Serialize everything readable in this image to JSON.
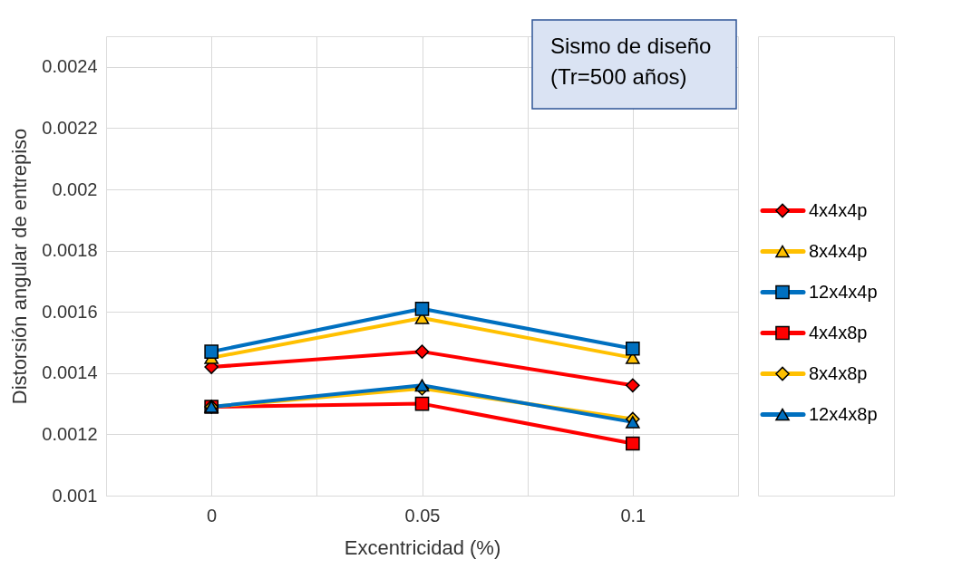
{
  "chart_data": {
    "type": "line",
    "xlabel": "Excentricidad (%)",
    "ylabel": "Distorsión angular de entrepiso",
    "x": [
      0,
      0.05,
      0.1
    ],
    "series": [
      {
        "name": "4x4x4p",
        "color": "#ff0000",
        "marker": "diamond",
        "values": [
          0.00142,
          0.00147,
          0.00136
        ]
      },
      {
        "name": "8x4x4p",
        "color": "#ffc000",
        "marker": "triangle",
        "values": [
          0.00145,
          0.00158,
          0.00145
        ]
      },
      {
        "name": "12x4x4p",
        "color": "#0070c0",
        "marker": "square",
        "values": [
          0.00147,
          0.00161,
          0.00148
        ]
      },
      {
        "name": "4x4x8p",
        "color": "#ff0000",
        "marker": "square",
        "values": [
          0.00129,
          0.0013,
          0.00117
        ]
      },
      {
        "name": "8x4x8p",
        "color": "#ffc000",
        "marker": "diamond",
        "values": [
          0.00129,
          0.00135,
          0.00125
        ]
      },
      {
        "name": "12x4x8p",
        "color": "#0070c0",
        "marker": "triangle",
        "values": [
          0.00129,
          0.00136,
          0.00124
        ]
      }
    ],
    "xlim": [
      -0.025,
      0.125
    ],
    "xticks": [
      0,
      {
        "value": 0.025,
        "label": null
      },
      0.05,
      {
        "value": 0.075,
        "label": null
      },
      0.1
    ],
    "ylim": [
      0.001,
      0.0025
    ],
    "yticks": [
      0.001,
      0.0012,
      0.0014,
      0.0016,
      0.0018,
      0.002,
      0.0022,
      0.0024
    ],
    "grid": true,
    "legend": "right",
    "line_style": "solid",
    "annotations": [
      "Sismo de diseño\n(Tr=500 años)"
    ]
  }
}
